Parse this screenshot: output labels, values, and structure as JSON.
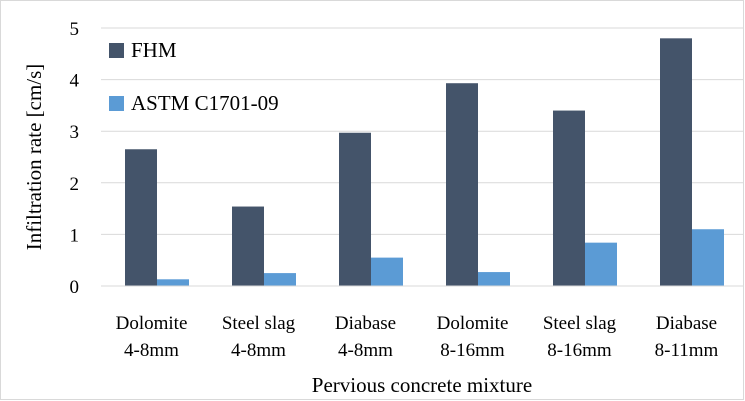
{
  "chart_data": {
    "type": "bar",
    "categories": [
      [
        "Dolomite",
        "4-8mm"
      ],
      [
        "Steel slag",
        "4-8mm"
      ],
      [
        "Diabase",
        "4-8mm"
      ],
      [
        "Dolomite",
        "8-16mm"
      ],
      [
        "Steel slag",
        "8-16mm"
      ],
      [
        "Diabase",
        "8-11mm"
      ]
    ],
    "series": [
      {
        "name": "FHM",
        "color": "#44546a",
        "values": [
          2.65,
          1.54,
          2.97,
          3.93,
          3.4,
          4.8
        ]
      },
      {
        "name": "ASTM C1701-09",
        "color": "#5b9bd5",
        "values": [
          0.13,
          0.25,
          0.55,
          0.27,
          0.84,
          1.1
        ]
      }
    ],
    "title": "",
    "xlabel": "Pervious concrete mixture",
    "ylabel": "Infiltration rate [cm/s]",
    "ylim": [
      0,
      5
    ],
    "yticks": [
      "0",
      "1",
      "2",
      "3",
      "4",
      "5"
    ],
    "grid": true,
    "legend_position": "top-left"
  }
}
